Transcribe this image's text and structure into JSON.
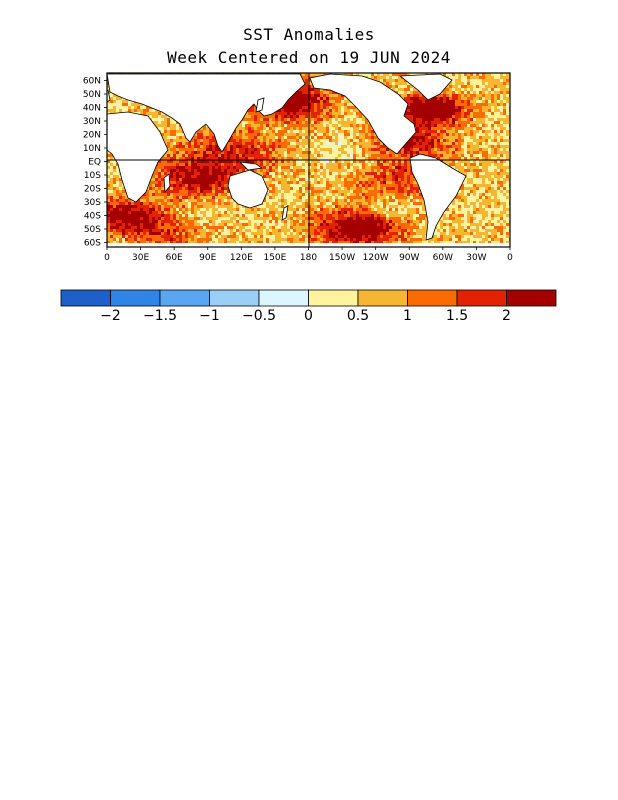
{
  "title": "SST Anomalies",
  "subtitle": "Week Centered on 19 JUN 2024",
  "lat_labels": [
    "60N",
    "50N",
    "40N",
    "30N",
    "20N",
    "10N",
    "EQ",
    "10S",
    "20S",
    "30S",
    "40S",
    "50S",
    "60S"
  ],
  "lon_labels": [
    "0",
    "30E",
    "60E",
    "90E",
    "120E",
    "150E",
    "180",
    "150W",
    "120W",
    "90W",
    "60W",
    "30W",
    "0"
  ],
  "colorbar": {
    "colors": [
      "#1f5fc8",
      "#2f84e6",
      "#5aa6f0",
      "#9ccff6",
      "#dcf6ff",
      "#fff3a0",
      "#f7b631",
      "#fb6b00",
      "#e22200",
      "#a50000"
    ],
    "labels": [
      "−2",
      "−1.5",
      "−1",
      "−0.5",
      "0",
      "0.5",
      "1",
      "1.5",
      "2"
    ]
  },
  "colors": {
    "land": "#ffffff",
    "coast": "#000000"
  }
}
